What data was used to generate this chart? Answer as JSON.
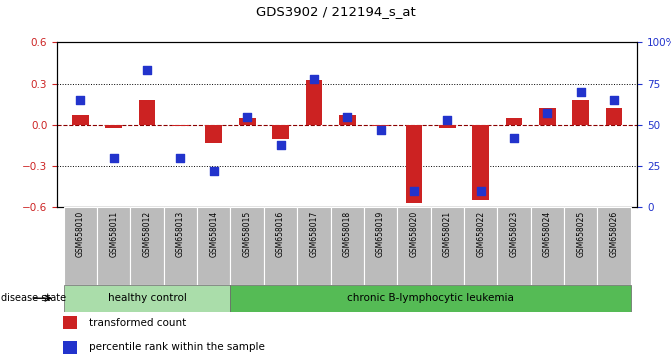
{
  "title": "GDS3902 / 212194_s_at",
  "samples": [
    "GSM658010",
    "GSM658011",
    "GSM658012",
    "GSM658013",
    "GSM658014",
    "GSM658015",
    "GSM658016",
    "GSM658017",
    "GSM658018",
    "GSM658019",
    "GSM658020",
    "GSM658021",
    "GSM658022",
    "GSM658023",
    "GSM658024",
    "GSM658025",
    "GSM658026"
  ],
  "red_values": [
    0.07,
    -0.02,
    0.18,
    -0.01,
    -0.13,
    0.05,
    -0.1,
    0.33,
    0.07,
    -0.01,
    -0.57,
    -0.02,
    -0.55,
    0.05,
    0.12,
    0.18,
    0.12
  ],
  "blue_values": [
    0.65,
    0.3,
    0.83,
    0.3,
    0.22,
    0.55,
    0.38,
    0.78,
    0.55,
    0.47,
    0.1,
    0.53,
    0.1,
    0.42,
    0.57,
    0.7,
    0.65
  ],
  "healthy_count": 5,
  "healthy_label": "healthy control",
  "disease_label": "chronic B-lymphocytic leukemia",
  "disease_state_label": "disease state",
  "legend_red": "transformed count",
  "legend_blue": "percentile rank within the sample",
  "ylim_left": [
    -0.6,
    0.6
  ],
  "ylim_right": [
    0,
    1.0
  ],
  "yticks_left": [
    -0.6,
    -0.3,
    0.0,
    0.3,
    0.6
  ],
  "yticks_right": [
    0,
    0.25,
    0.5,
    0.75,
    1.0
  ],
  "ytick_labels_right": [
    "0",
    "25",
    "50",
    "75",
    "100%"
  ],
  "hlines_dotted": [
    0.3,
    -0.3
  ],
  "bar_color": "#cc2222",
  "dot_color": "#2233cc",
  "healthy_bg": "#aaddaa",
  "disease_bg": "#55bb55",
  "tick_area_color": "#bbbbbb",
  "bar_width": 0.5,
  "dot_size": 30
}
